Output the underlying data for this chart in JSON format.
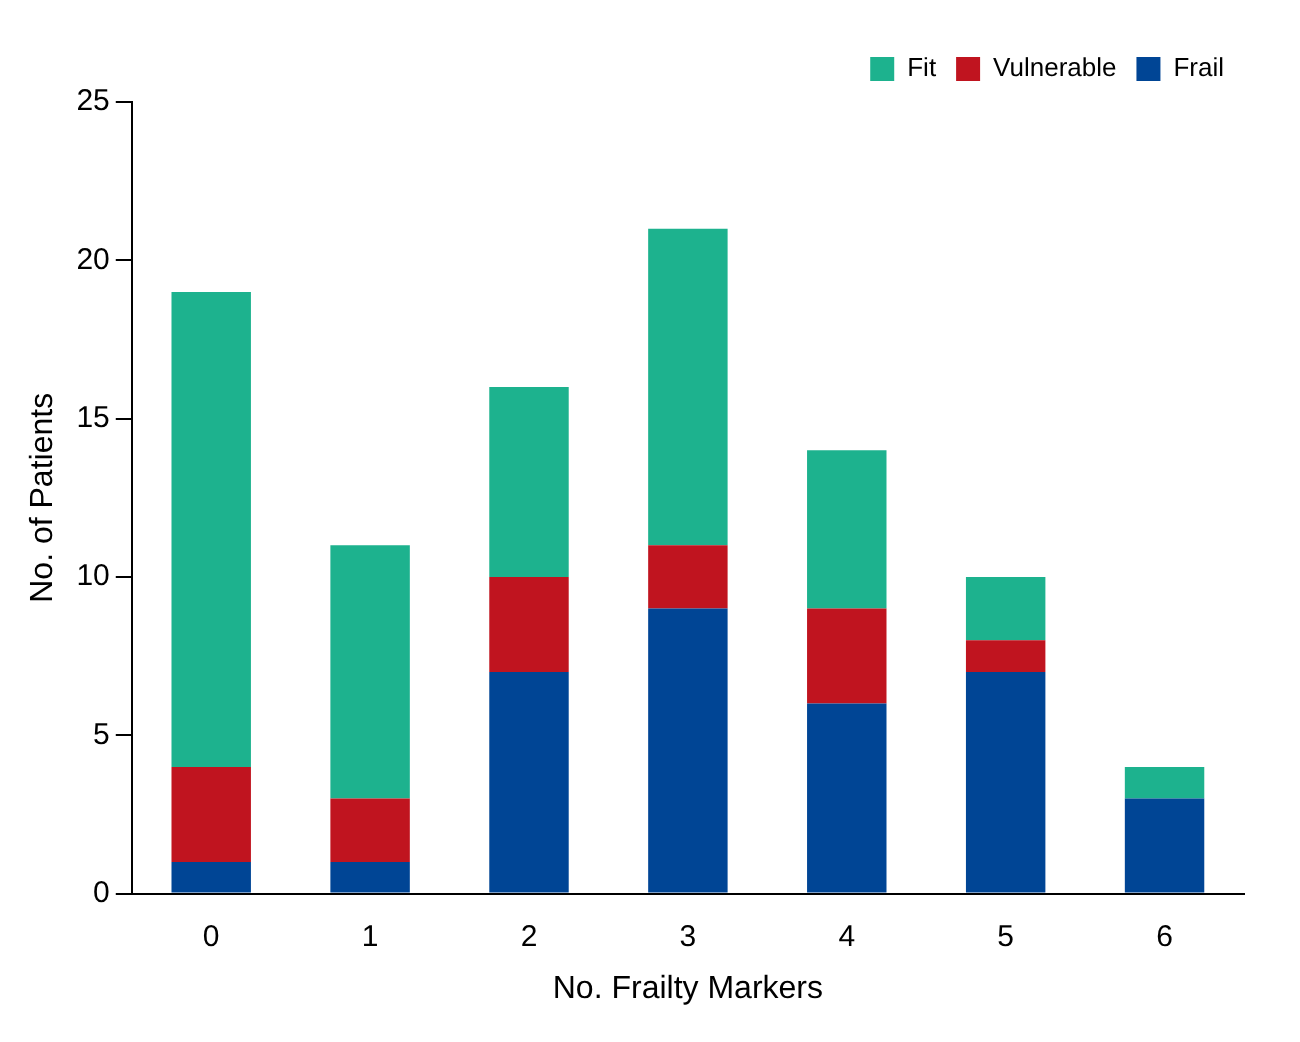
{
  "chart_data": {
    "type": "bar",
    "stacked": true,
    "xlabel": "No. Frailty Markers",
    "ylabel": "No. of Patients",
    "categories": [
      "0",
      "1",
      "2",
      "3",
      "4",
      "5",
      "6"
    ],
    "series": [
      {
        "name": "Frail",
        "color": "#004595",
        "values": [
          1,
          1,
          7,
          9,
          6,
          7,
          3
        ]
      },
      {
        "name": "Vulnerable",
        "color": "#c0141f",
        "values": [
          3,
          2,
          3,
          2,
          3,
          1,
          0
        ]
      },
      {
        "name": "Fit",
        "color": "#1db28e",
        "values": [
          15,
          8,
          6,
          10,
          5,
          2,
          1
        ]
      }
    ],
    "ylim": [
      0,
      25
    ],
    "yticks": [
      0,
      5,
      10,
      15,
      20,
      25
    ],
    "grid": false,
    "legend": "top right"
  }
}
